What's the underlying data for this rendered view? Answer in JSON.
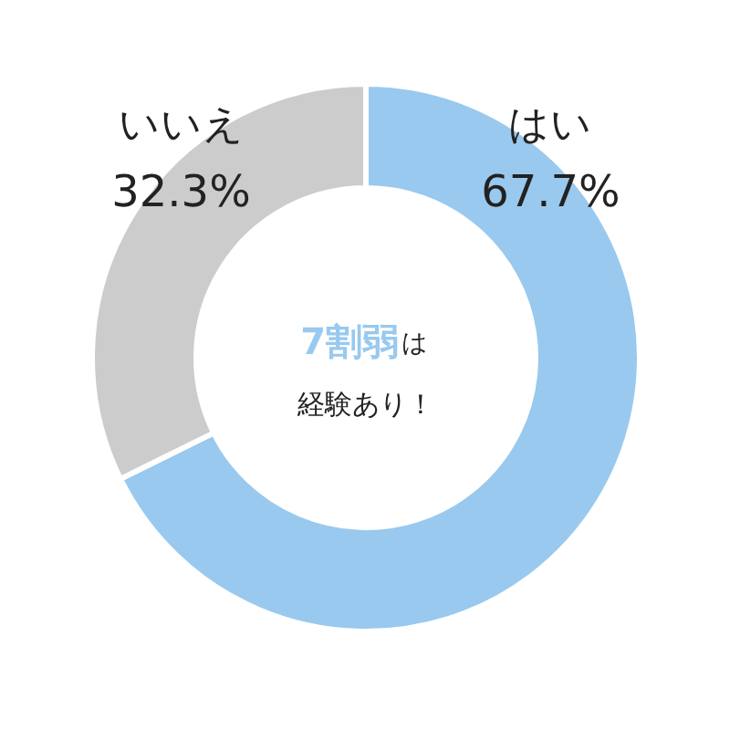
{
  "chart_data": {
    "type": "donut",
    "categories": [
      "はい",
      "いいえ"
    ],
    "values": [
      67.7,
      32.3
    ],
    "colors": [
      "#99c9ee",
      "#cccccc"
    ],
    "value_labels": [
      "67.7%",
      "32.3%"
    ],
    "annotations": [
      "7割弱",
      "は",
      "経験あり！"
    ]
  }
}
